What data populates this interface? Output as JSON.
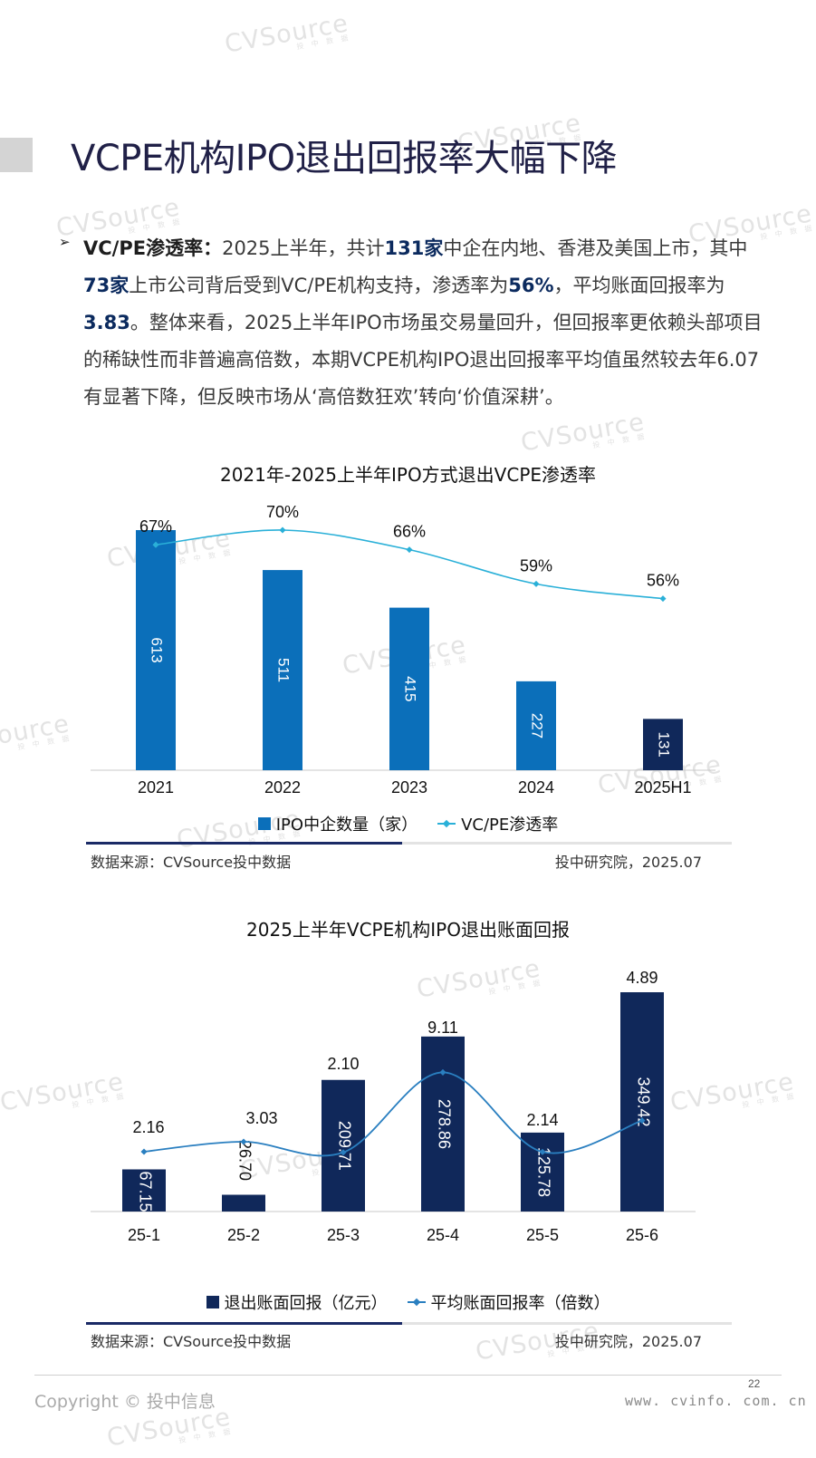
{
  "page": {
    "title": "VCPE机构IPO退出回报率大幅下降",
    "watermark": "CVSource",
    "watermark_sub": "投 中 数 据",
    "bullet_symbol": "➢",
    "paragraph": {
      "lead": "VC/PE渗透率：",
      "t1": "2025上半年，共计",
      "h1": "131家",
      "t2": "中企在内地、香港及美国上市，其中",
      "h2": "73家",
      "t3": "上市公司背后受到VC/PE机构支持，渗透率为",
      "h3": "56%",
      "t4": "，平均账面回报率为",
      "h4": "3.83",
      "t5": "。整体来看，2025上半年IPO市场虽交易量回升，但回报率更依赖头部项目的稀缺性而非普遍高倍数，本期VCPE机构IPO退出回报率平均值虽然较去年6.07有显著下降，但反映市场从‘高倍数狂欢’转向‘价值深耕’。"
    },
    "footer": {
      "page_number": "22",
      "copyright": "Copyright © 投中信息",
      "url": "www. cvinfo. com. cn"
    }
  },
  "chart_data": [
    {
      "type": "bar",
      "title": "2021年-2025上半年IPO方式退出VCPE渗透率",
      "categories": [
        "2021",
        "2022",
        "2023",
        "2024",
        "2025H1"
      ],
      "series": [
        {
          "name": "IPO中企数量（家）",
          "type": "bar",
          "values": [
            613,
            511,
            415,
            227,
            131
          ],
          "color": "#0b6fba",
          "highlight_color": "#10285a",
          "highlight_index": 4
        },
        {
          "name": "VC/PE渗透率",
          "type": "line",
          "values": [
            67,
            70,
            66,
            59,
            56
          ],
          "labels": [
            "67%",
            "70%",
            "66%",
            "59%",
            "56%"
          ],
          "color": "#2ab0d8"
        }
      ],
      "source": "数据来源：CVSource投中数据",
      "publisher": "投中研究院，2025.07",
      "underline_progress": 0.49
    },
    {
      "type": "bar",
      "title": "2025上半年VCPE机构IPO退出账面回报",
      "categories": [
        "25-1",
        "25-2",
        "25-3",
        "25-4",
        "25-5",
        "25-6"
      ],
      "series": [
        {
          "name": "退出账面回报（亿元）",
          "type": "bar",
          "values": [
            67.15,
            26.7,
            209.71,
            278.86,
            125.78,
            349.42
          ],
          "labels": [
            "67.15",
            "26.70",
            "209.71",
            "278.86",
            "125.78",
            "349.42"
          ],
          "color": "#10285a"
        },
        {
          "name": "平均账面回报率（倍数）",
          "type": "line",
          "values": [
            2.16,
            3.03,
            2.1,
            9.11,
            2.14,
            4.89
          ],
          "labels": [
            "2.16",
            "3.03",
            "2.10",
            "9.11",
            "2.14",
            "4.89"
          ],
          "color": "#2a7fc0"
        }
      ],
      "source": "数据来源：CVSource投中数据",
      "publisher": "投中研究院，2025.07",
      "underline_progress": 0.49
    }
  ]
}
